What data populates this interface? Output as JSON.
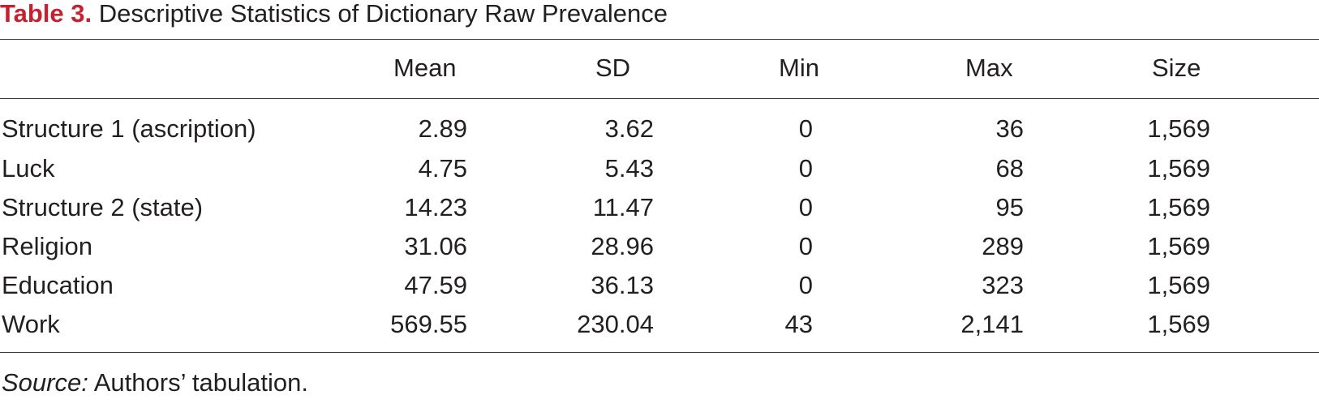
{
  "caption": {
    "label": "Table 3.",
    "title": "Descriptive Statistics of Dictionary Raw Prevalence"
  },
  "table": {
    "headers": {
      "name": "",
      "mean": "Mean",
      "sd": "SD",
      "min": "Min",
      "max": "Max",
      "size": "Size"
    },
    "rows": [
      {
        "name": "Structure 1 (ascription)",
        "mean": "2.89",
        "sd": "3.62",
        "min": "0",
        "max": "36",
        "size": "1,569"
      },
      {
        "name": "Luck",
        "mean": "4.75",
        "sd": "5.43",
        "min": "0",
        "max": "68",
        "size": "1,569"
      },
      {
        "name": "Structure 2 (state)",
        "mean": "14.23",
        "sd": "11.47",
        "min": "0",
        "max": "95",
        "size": "1,569"
      },
      {
        "name": "Religion",
        "mean": "31.06",
        "sd": "28.96",
        "min": "0",
        "max": "289",
        "size": "1,569"
      },
      {
        "name": "Education",
        "mean": "47.59",
        "sd": "36.13",
        "min": "0",
        "max": "323",
        "size": "1,569"
      },
      {
        "name": "Work",
        "mean": "569.55",
        "sd": "230.04",
        "min": "43",
        "max": "2,141",
        "size": "1,569"
      }
    ]
  },
  "source": {
    "label": "Source:",
    "text": " Authors’ tabulation."
  },
  "colors": {
    "caption_label": "#c8202f",
    "text": "#231f20",
    "rule": "#3a3a3a"
  }
}
